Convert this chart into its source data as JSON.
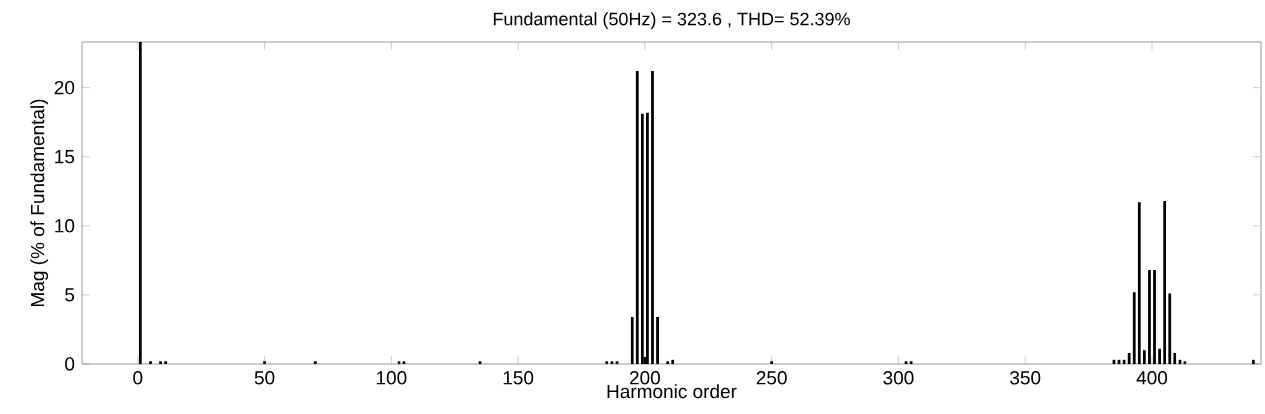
{
  "chart_data": {
    "type": "bar",
    "title": "Fundamental (50Hz) = 323.6 , THD= 52.39%",
    "xlabel": "Harmonic order",
    "ylabel": "Mag (% of Fundamental)",
    "x": [
      1,
      5,
      9,
      11,
      50,
      70,
      103,
      105,
      135,
      185,
      187,
      189,
      195,
      197,
      199,
      200,
      201,
      203,
      205,
      209,
      211,
      250,
      303,
      305,
      385,
      387,
      389,
      391,
      393,
      395,
      397,
      399,
      401,
      403,
      405,
      407,
      409,
      411,
      413,
      440
    ],
    "values": [
      23.3,
      0.2,
      0.2,
      0.2,
      0.2,
      0.2,
      0.2,
      0.2,
      0.2,
      0.2,
      0.2,
      0.2,
      3.4,
      21.2,
      18.1,
      0.5,
      18.2,
      21.2,
      3.4,
      0.2,
      0.3,
      0.2,
      0.2,
      0.2,
      0.3,
      0.3,
      0.3,
      0.8,
      5.2,
      11.7,
      1.0,
      6.8,
      6.8,
      1.1,
      11.8,
      5.1,
      0.8,
      0.3,
      0.2,
      0.3
    ],
    "color": "#000000",
    "xlim": [
      -22,
      443
    ],
    "ylim": [
      0,
      23.3
    ],
    "xticks": [
      0,
      50,
      100,
      150,
      200,
      250,
      300,
      350,
      400
    ],
    "yticks": [
      0,
      5,
      10,
      15,
      20
    ]
  }
}
